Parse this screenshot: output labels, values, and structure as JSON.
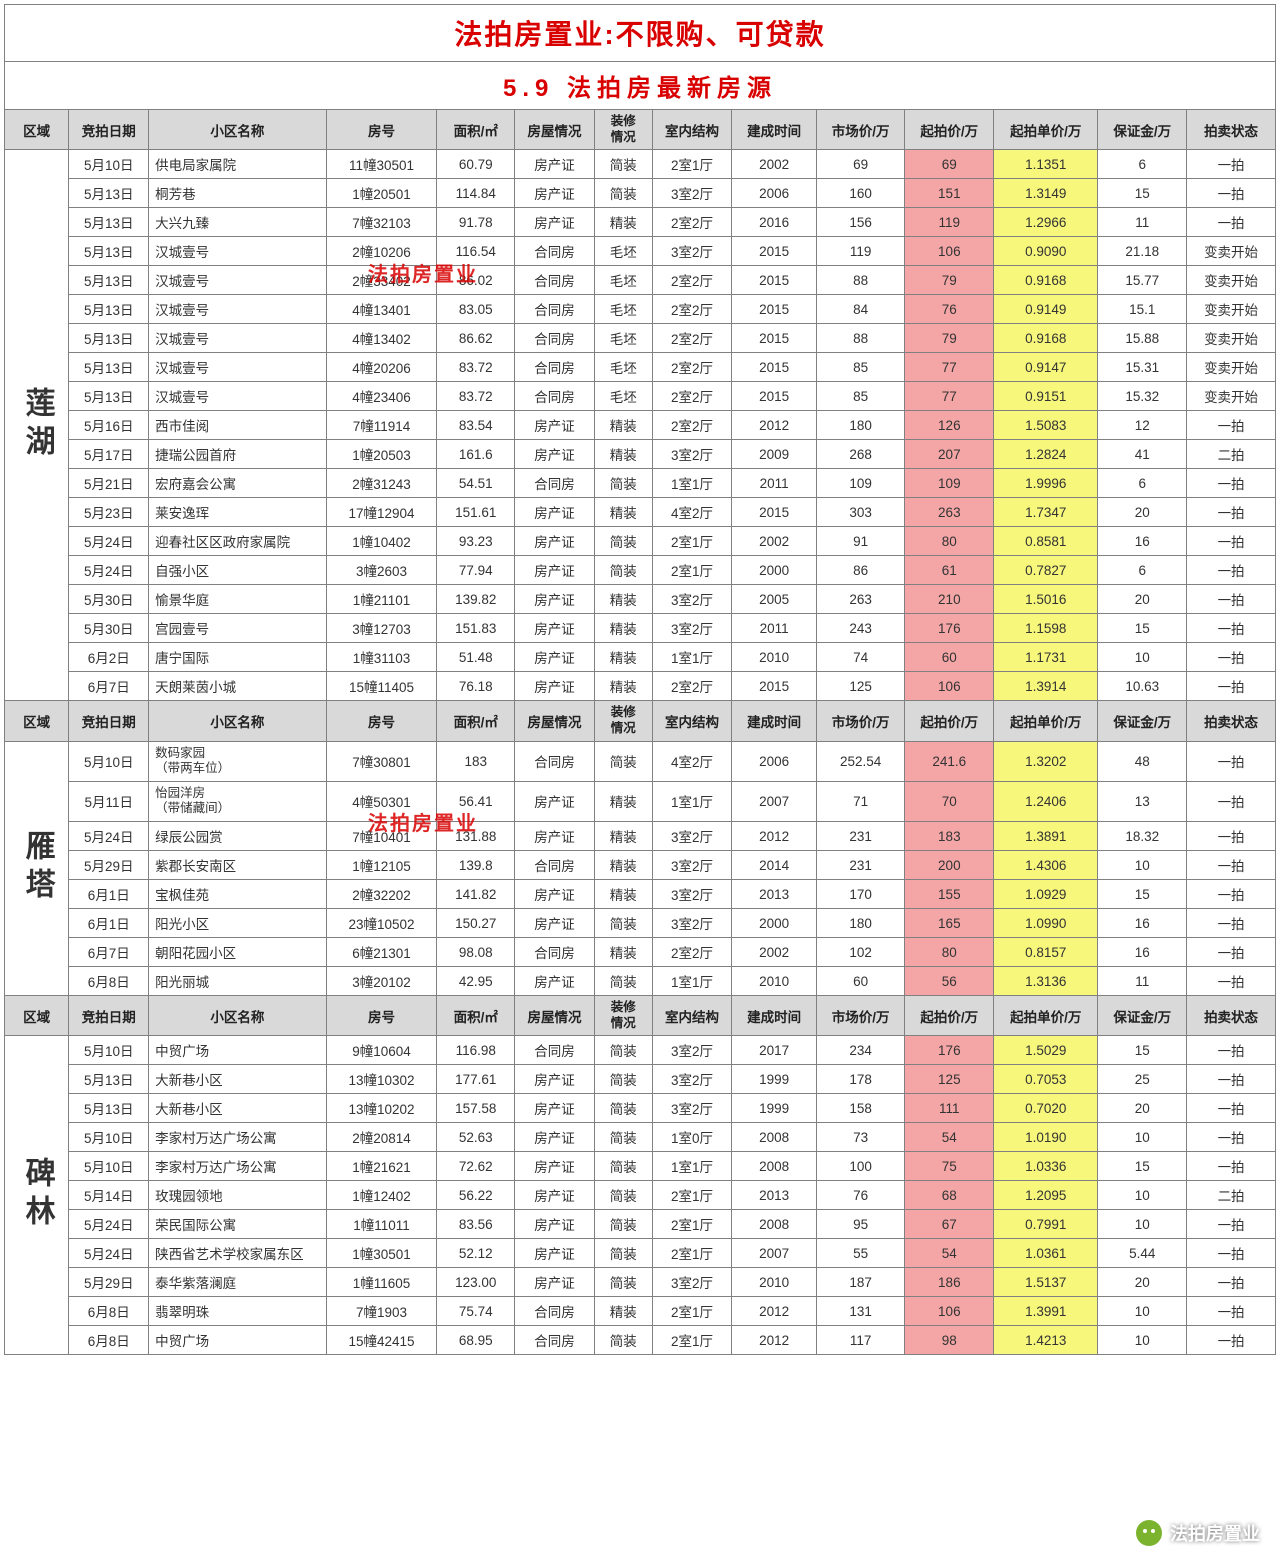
{
  "title1": "法拍房置业:不限购、可贷款",
  "title2": "5.9   法拍房最新房源",
  "watermark": "法拍房置业",
  "wechat_label": "法拍房置业",
  "colors": {
    "header_bg": "#d9d9d9",
    "start_price_bg": "#f4a6a6",
    "unit_price_bg": "#f7f77c",
    "title_color": "#d90000",
    "border": "#808080"
  },
  "columns": [
    "区域",
    "竞拍日期",
    "小区名称",
    "房号",
    "面积/㎡",
    "房屋情况",
    "装修情况",
    "室内结构",
    "建成时间",
    "市场价/万",
    "起拍价/万",
    "起拍单价/万",
    "保证金/万",
    "拍卖状态"
  ],
  "sections": [
    {
      "region": "莲湖",
      "rows": [
        {
          "date": "5月10日",
          "name": "供电局家属院",
          "room": "11幢30501",
          "area": "60.79",
          "status": "房产证",
          "deco": "简装",
          "layout": "2室1厅",
          "year": "2002",
          "market": "69",
          "start": "69",
          "unit": "1.1351",
          "deposit": "6",
          "state": "一拍"
        },
        {
          "date": "5月13日",
          "name": "桐芳巷",
          "room": "1幢20501",
          "area": "114.84",
          "status": "房产证",
          "deco": "简装",
          "layout": "3室2厅",
          "year": "2006",
          "market": "160",
          "start": "151",
          "unit": "1.3149",
          "deposit": "15",
          "state": "一拍"
        },
        {
          "date": "5月13日",
          "name": "大兴九臻",
          "room": "7幢32103",
          "area": "91.78",
          "status": "房产证",
          "deco": "精装",
          "layout": "2室2厅",
          "year": "2016",
          "market": "156",
          "start": "119",
          "unit": "1.2966",
          "deposit": "11",
          "state": "一拍"
        },
        {
          "date": "5月13日",
          "name": "汉城壹号",
          "room": "2幢10206",
          "area": "116.54",
          "status": "合同房",
          "deco": "毛坯",
          "layout": "3室2厅",
          "year": "2015",
          "market": "119",
          "start": "106",
          "unit": "0.9090",
          "deposit": "21.18",
          "state": "变卖开始"
        },
        {
          "date": "5月13日",
          "name": "汉城壹号",
          "room": "2幢33402",
          "area": "86.02",
          "status": "合同房",
          "deco": "毛坯",
          "layout": "2室2厅",
          "year": "2015",
          "market": "88",
          "start": "79",
          "unit": "0.9168",
          "deposit": "15.77",
          "state": "变卖开始"
        },
        {
          "date": "5月13日",
          "name": "汉城壹号",
          "room": "4幢13401",
          "area": "83.05",
          "status": "合同房",
          "deco": "毛坯",
          "layout": "2室2厅",
          "year": "2015",
          "market": "84",
          "start": "76",
          "unit": "0.9149",
          "deposit": "15.1",
          "state": "变卖开始"
        },
        {
          "date": "5月13日",
          "name": "汉城壹号",
          "room": "4幢13402",
          "area": "86.62",
          "status": "合同房",
          "deco": "毛坯",
          "layout": "2室2厅",
          "year": "2015",
          "market": "88",
          "start": "79",
          "unit": "0.9168",
          "deposit": "15.88",
          "state": "变卖开始"
        },
        {
          "date": "5月13日",
          "name": "汉城壹号",
          "room": "4幢20206",
          "area": "83.72",
          "status": "合同房",
          "deco": "毛坯",
          "layout": "2室2厅",
          "year": "2015",
          "market": "85",
          "start": "77",
          "unit": "0.9147",
          "deposit": "15.31",
          "state": "变卖开始"
        },
        {
          "date": "5月13日",
          "name": "汉城壹号",
          "room": "4幢23406",
          "area": "83.72",
          "status": "合同房",
          "deco": "毛坯",
          "layout": "2室2厅",
          "year": "2015",
          "market": "85",
          "start": "77",
          "unit": "0.9151",
          "deposit": "15.32",
          "state": "变卖开始"
        },
        {
          "date": "5月16日",
          "name": "西市佳阅",
          "room": "7幢11914",
          "area": "83.54",
          "status": "房产证",
          "deco": "精装",
          "layout": "2室2厅",
          "year": "2012",
          "market": "180",
          "start": "126",
          "unit": "1.5083",
          "deposit": "12",
          "state": "一拍"
        },
        {
          "date": "5月17日",
          "name": "捷瑞公园首府",
          "room": "1幢20503",
          "area": "161.6",
          "status": "房产证",
          "deco": "精装",
          "layout": "3室2厅",
          "year": "2009",
          "market": "268",
          "start": "207",
          "unit": "1.2824",
          "deposit": "41",
          "state": "二拍"
        },
        {
          "date": "5月21日",
          "name": "宏府嘉会公寓",
          "room": "2幢31243",
          "area": "54.51",
          "status": "合同房",
          "deco": "简装",
          "layout": "1室1厅",
          "year": "2011",
          "market": "109",
          "start": "109",
          "unit": "1.9996",
          "deposit": "6",
          "state": "一拍"
        },
        {
          "date": "5月23日",
          "name": "莱安逸珲",
          "room": "17幢12904",
          "area": "151.61",
          "status": "房产证",
          "deco": "精装",
          "layout": "4室2厅",
          "year": "2015",
          "market": "303",
          "start": "263",
          "unit": "1.7347",
          "deposit": "20",
          "state": "一拍"
        },
        {
          "date": "5月24日",
          "name": "迎春社区区政府家属院",
          "room": "1幢10402",
          "area": "93.23",
          "status": "房产证",
          "deco": "简装",
          "layout": "2室1厅",
          "year": "2002",
          "market": "91",
          "start": "80",
          "unit": "0.8581",
          "deposit": "16",
          "state": "一拍"
        },
        {
          "date": "5月24日",
          "name": "自强小区",
          "room": "3幢2603",
          "area": "77.94",
          "status": "房产证",
          "deco": "简装",
          "layout": "2室1厅",
          "year": "2000",
          "market": "86",
          "start": "61",
          "unit": "0.7827",
          "deposit": "6",
          "state": "一拍"
        },
        {
          "date": "5月30日",
          "name": "愉景华庭",
          "room": "1幢21101",
          "area": "139.82",
          "status": "房产证",
          "deco": "精装",
          "layout": "3室2厅",
          "year": "2005",
          "market": "263",
          "start": "210",
          "unit": "1.5016",
          "deposit": "20",
          "state": "一拍"
        },
        {
          "date": "5月30日",
          "name": "宫园壹号",
          "room": "3幢12703",
          "area": "151.83",
          "status": "房产证",
          "deco": "精装",
          "layout": "3室2厅",
          "year": "2011",
          "market": "243",
          "start": "176",
          "unit": "1.1598",
          "deposit": "15",
          "state": "一拍"
        },
        {
          "date": "6月2日",
          "name": "唐宁国际",
          "room": "1幢31103",
          "area": "51.48",
          "status": "房产证",
          "deco": "精装",
          "layout": "1室1厅",
          "year": "2010",
          "market": "74",
          "start": "60",
          "unit": "1.1731",
          "deposit": "10",
          "state": "一拍"
        },
        {
          "date": "6月7日",
          "name": "天朗莱茵小城",
          "room": "15幢11405",
          "area": "76.18",
          "status": "房产证",
          "deco": "精装",
          "layout": "2室2厅",
          "year": "2015",
          "market": "125",
          "start": "106",
          "unit": "1.3914",
          "deposit": "10.63",
          "state": "一拍"
        }
      ]
    },
    {
      "region": "雁塔",
      "header_repeat": true,
      "rows": [
        {
          "date": "5月10日",
          "name": "数码家园\n（带两车位）",
          "room": "7幢30801",
          "area": "183",
          "status": "合同房",
          "deco": "简装",
          "layout": "4室2厅",
          "year": "2006",
          "market": "252.54",
          "start": "241.6",
          "unit": "1.3202",
          "deposit": "48",
          "state": "一拍"
        },
        {
          "date": "5月11日",
          "name": "怡园洋房\n（带储藏间）",
          "room": "4幢50301",
          "area": "56.41",
          "status": "房产证",
          "deco": "精装",
          "layout": "1室1厅",
          "year": "2007",
          "market": "71",
          "start": "70",
          "unit": "1.2406",
          "deposit": "13",
          "state": "一拍"
        },
        {
          "date": "5月24日",
          "name": "绿辰公园赏",
          "room": "7幢10401",
          "area": "131.88",
          "status": "房产证",
          "deco": "精装",
          "layout": "3室2厅",
          "year": "2012",
          "market": "231",
          "start": "183",
          "unit": "1.3891",
          "deposit": "18.32",
          "state": "一拍"
        },
        {
          "date": "5月29日",
          "name": "紫郡长安南区",
          "room": "1幢12105",
          "area": "139.8",
          "status": "合同房",
          "deco": "精装",
          "layout": "3室2厅",
          "year": "2014",
          "market": "231",
          "start": "200",
          "unit": "1.4306",
          "deposit": "10",
          "state": "一拍"
        },
        {
          "date": "6月1日",
          "name": "宝枫佳苑",
          "room": "2幢32202",
          "area": "141.82",
          "status": "房产证",
          "deco": "精装",
          "layout": "3室2厅",
          "year": "2013",
          "market": "170",
          "start": "155",
          "unit": "1.0929",
          "deposit": "15",
          "state": "一拍"
        },
        {
          "date": "6月1日",
          "name": "阳光小区",
          "room": "23幢10502",
          "area": "150.27",
          "status": "房产证",
          "deco": "简装",
          "layout": "3室2厅",
          "year": "2000",
          "market": "180",
          "start": "165",
          "unit": "1.0990",
          "deposit": "16",
          "state": "一拍"
        },
        {
          "date": "6月7日",
          "name": "朝阳花园小区",
          "room": "6幢21301",
          "area": "98.08",
          "status": "合同房",
          "deco": "精装",
          "layout": "2室2厅",
          "year": "2002",
          "market": "102",
          "start": "80",
          "unit": "0.8157",
          "deposit": "16",
          "state": "一拍"
        },
        {
          "date": "6月8日",
          "name": "阳光丽城",
          "room": "3幢20102",
          "area": "42.95",
          "status": "房产证",
          "deco": "简装",
          "layout": "1室1厅",
          "year": "2010",
          "market": "60",
          "start": "56",
          "unit": "1.3136",
          "deposit": "11",
          "state": "一拍"
        }
      ]
    },
    {
      "region": "碑林",
      "header_repeat": true,
      "rows": [
        {
          "date": "5月10日",
          "name": "中贸广场",
          "room": "9幢10604",
          "area": "116.98",
          "status": "合同房",
          "deco": "简装",
          "layout": "3室2厅",
          "year": "2017",
          "market": "234",
          "start": "176",
          "unit": "1.5029",
          "deposit": "15",
          "state": "一拍"
        },
        {
          "date": "5月13日",
          "name": "大新巷小区",
          "room": "13幢10302",
          "area": "177.61",
          "status": "房产证",
          "deco": "简装",
          "layout": "3室2厅",
          "year": "1999",
          "market": "178",
          "start": "125",
          "unit": "0.7053",
          "deposit": "25",
          "state": "一拍"
        },
        {
          "date": "5月13日",
          "name": "大新巷小区",
          "room": "13幢10202",
          "area": "157.58",
          "status": "房产证",
          "deco": "简装",
          "layout": "3室2厅",
          "year": "1999",
          "market": "158",
          "start": "111",
          "unit": "0.7020",
          "deposit": "20",
          "state": "一拍"
        },
        {
          "date": "5月10日",
          "name": "李家村万达广场公寓",
          "room": "2幢20814",
          "area": "52.63",
          "status": "房产证",
          "deco": "简装",
          "layout": "1室0厅",
          "year": "2008",
          "market": "73",
          "start": "54",
          "unit": "1.0190",
          "deposit": "10",
          "state": "一拍"
        },
        {
          "date": "5月10日",
          "name": "李家村万达广场公寓",
          "room": "1幢21621",
          "area": "72.62",
          "status": "房产证",
          "deco": "简装",
          "layout": "1室1厅",
          "year": "2008",
          "market": "100",
          "start": "75",
          "unit": "1.0336",
          "deposit": "15",
          "state": "一拍"
        },
        {
          "date": "5月14日",
          "name": "玫瑰园领地",
          "room": "1幢12402",
          "area": "56.22",
          "status": "房产证",
          "deco": "简装",
          "layout": "2室1厅",
          "year": "2013",
          "market": "76",
          "start": "68",
          "unit": "1.2095",
          "deposit": "10",
          "state": "二拍"
        },
        {
          "date": "5月24日",
          "name": "荣民国际公寓",
          "room": "1幢11011",
          "area": "83.56",
          "status": "房产证",
          "deco": "简装",
          "layout": "2室1厅",
          "year": "2008",
          "market": "95",
          "start": "67",
          "unit": "0.7991",
          "deposit": "10",
          "state": "一拍"
        },
        {
          "date": "5月24日",
          "name": "陕西省艺术学校家属东区",
          "room": "1幢30501",
          "area": "52.12",
          "status": "房产证",
          "deco": "简装",
          "layout": "2室1厅",
          "year": "2007",
          "market": "55",
          "start": "54",
          "unit": "1.0361",
          "deposit": "5.44",
          "state": "一拍"
        },
        {
          "date": "5月29日",
          "name": "泰华紫落澜庭",
          "room": "1幢11605",
          "area": "123.00",
          "status": "房产证",
          "deco": "简装",
          "layout": "3室2厅",
          "year": "2010",
          "market": "187",
          "start": "186",
          "unit": "1.5137",
          "deposit": "20",
          "state": "一拍"
        },
        {
          "date": "6月8日",
          "name": "翡翠明珠",
          "room": "7幢1903",
          "area": "75.74",
          "status": "合同房",
          "deco": "精装",
          "layout": "2室1厅",
          "year": "2012",
          "market": "131",
          "start": "106",
          "unit": "1.3991",
          "deposit": "10",
          "state": "一拍"
        },
        {
          "date": "6月8日",
          "name": "中贸广场",
          "room": "15幢42415",
          "area": "68.95",
          "status": "合同房",
          "deco": "简装",
          "layout": "2室1厅",
          "year": "2012",
          "market": "117",
          "start": "98",
          "unit": "1.4213",
          "deposit": "10",
          "state": "一拍"
        }
      ]
    }
  ]
}
